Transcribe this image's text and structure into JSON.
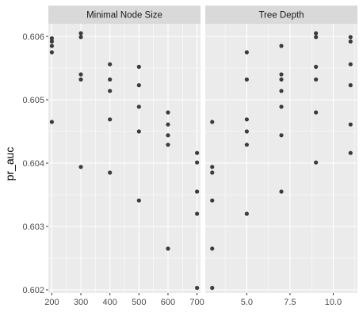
{
  "chart_data": {
    "type": "scatter",
    "ylabel": "pr_auc",
    "ylim": [
      0.60195,
      0.6062
    ],
    "y_ticks": [
      0.602,
      0.603,
      0.604,
      0.605,
      0.606
    ],
    "y_tick_labels": [
      "0.602",
      "0.603",
      "0.604",
      "0.605",
      "0.606"
    ],
    "grid": true,
    "colors": {
      "panel_bg": "#ebebeb",
      "strip_bg": "#d9d9d9",
      "grid": "#ffffff",
      "point": "#333333"
    },
    "panels": [
      {
        "strip": "Minimal Node Size",
        "xlim": [
          188,
          712
        ],
        "x_ticks": [
          200,
          300,
          400,
          500,
          600,
          700
        ],
        "x_tick_labels": [
          "200",
          "300",
          "400",
          "500",
          "600",
          "700"
        ],
        "points": [
          {
            "x": 200,
            "y": 0.60597
          },
          {
            "x": 200,
            "y": 0.60592
          },
          {
            "x": 200,
            "y": 0.60585
          },
          {
            "x": 200,
            "y": 0.60575
          },
          {
            "x": 200,
            "y": 0.60465
          },
          {
            "x": 300,
            "y": 0.60605
          },
          {
            "x": 300,
            "y": 0.60599
          },
          {
            "x": 300,
            "y": 0.6054
          },
          {
            "x": 300,
            "y": 0.60532
          },
          {
            "x": 300,
            "y": 0.60394
          },
          {
            "x": 400,
            "y": 0.60556
          },
          {
            "x": 400,
            "y": 0.60532
          },
          {
            "x": 400,
            "y": 0.60514
          },
          {
            "x": 400,
            "y": 0.60469
          },
          {
            "x": 400,
            "y": 0.60385
          },
          {
            "x": 500,
            "y": 0.60552
          },
          {
            "x": 500,
            "y": 0.60523
          },
          {
            "x": 500,
            "y": 0.60489
          },
          {
            "x": 500,
            "y": 0.6045
          },
          {
            "x": 500,
            "y": 0.60341
          },
          {
            "x": 600,
            "y": 0.6048
          },
          {
            "x": 600,
            "y": 0.60461
          },
          {
            "x": 600,
            "y": 0.60444
          },
          {
            "x": 600,
            "y": 0.60429
          },
          {
            "x": 600,
            "y": 0.60265
          },
          {
            "x": 700,
            "y": 0.60416
          },
          {
            "x": 700,
            "y": 0.60401
          },
          {
            "x": 700,
            "y": 0.60355
          },
          {
            "x": 700,
            "y": 0.6032
          },
          {
            "x": 700,
            "y": 0.60203
          }
        ]
      },
      {
        "strip": "Tree Depth",
        "xlim": [
          2.6,
          11.4
        ],
        "x_ticks": [
          5.0,
          7.5,
          10.0
        ],
        "x_tick_labels": [
          "5.0",
          "7.5",
          "10.0"
        ],
        "points": [
          {
            "x": 3,
            "y": 0.60465
          },
          {
            "x": 3,
            "y": 0.60394
          },
          {
            "x": 3,
            "y": 0.60385
          },
          {
            "x": 3,
            "y": 0.60341
          },
          {
            "x": 3,
            "y": 0.60265
          },
          {
            "x": 3,
            "y": 0.60203
          },
          {
            "x": 5,
            "y": 0.60575
          },
          {
            "x": 5,
            "y": 0.60532
          },
          {
            "x": 5,
            "y": 0.60469
          },
          {
            "x": 5,
            "y": 0.6045
          },
          {
            "x": 5,
            "y": 0.60429
          },
          {
            "x": 5,
            "y": 0.6032
          },
          {
            "x": 7,
            "y": 0.60585
          },
          {
            "x": 7,
            "y": 0.6054
          },
          {
            "x": 7,
            "y": 0.60532
          },
          {
            "x": 7,
            "y": 0.60514
          },
          {
            "x": 7,
            "y": 0.60489
          },
          {
            "x": 7,
            "y": 0.60444
          },
          {
            "x": 7,
            "y": 0.60355
          },
          {
            "x": 9,
            "y": 0.60605
          },
          {
            "x": 9,
            "y": 0.60599
          },
          {
            "x": 9,
            "y": 0.60552
          },
          {
            "x": 9,
            "y": 0.60532
          },
          {
            "x": 9,
            "y": 0.6048
          },
          {
            "x": 9,
            "y": 0.60401
          },
          {
            "x": 11,
            "y": 0.60599
          },
          {
            "x": 11,
            "y": 0.60592
          },
          {
            "x": 11,
            "y": 0.60556
          },
          {
            "x": 11,
            "y": 0.60523
          },
          {
            "x": 11,
            "y": 0.60461
          },
          {
            "x": 11,
            "y": 0.60416
          }
        ]
      }
    ]
  }
}
